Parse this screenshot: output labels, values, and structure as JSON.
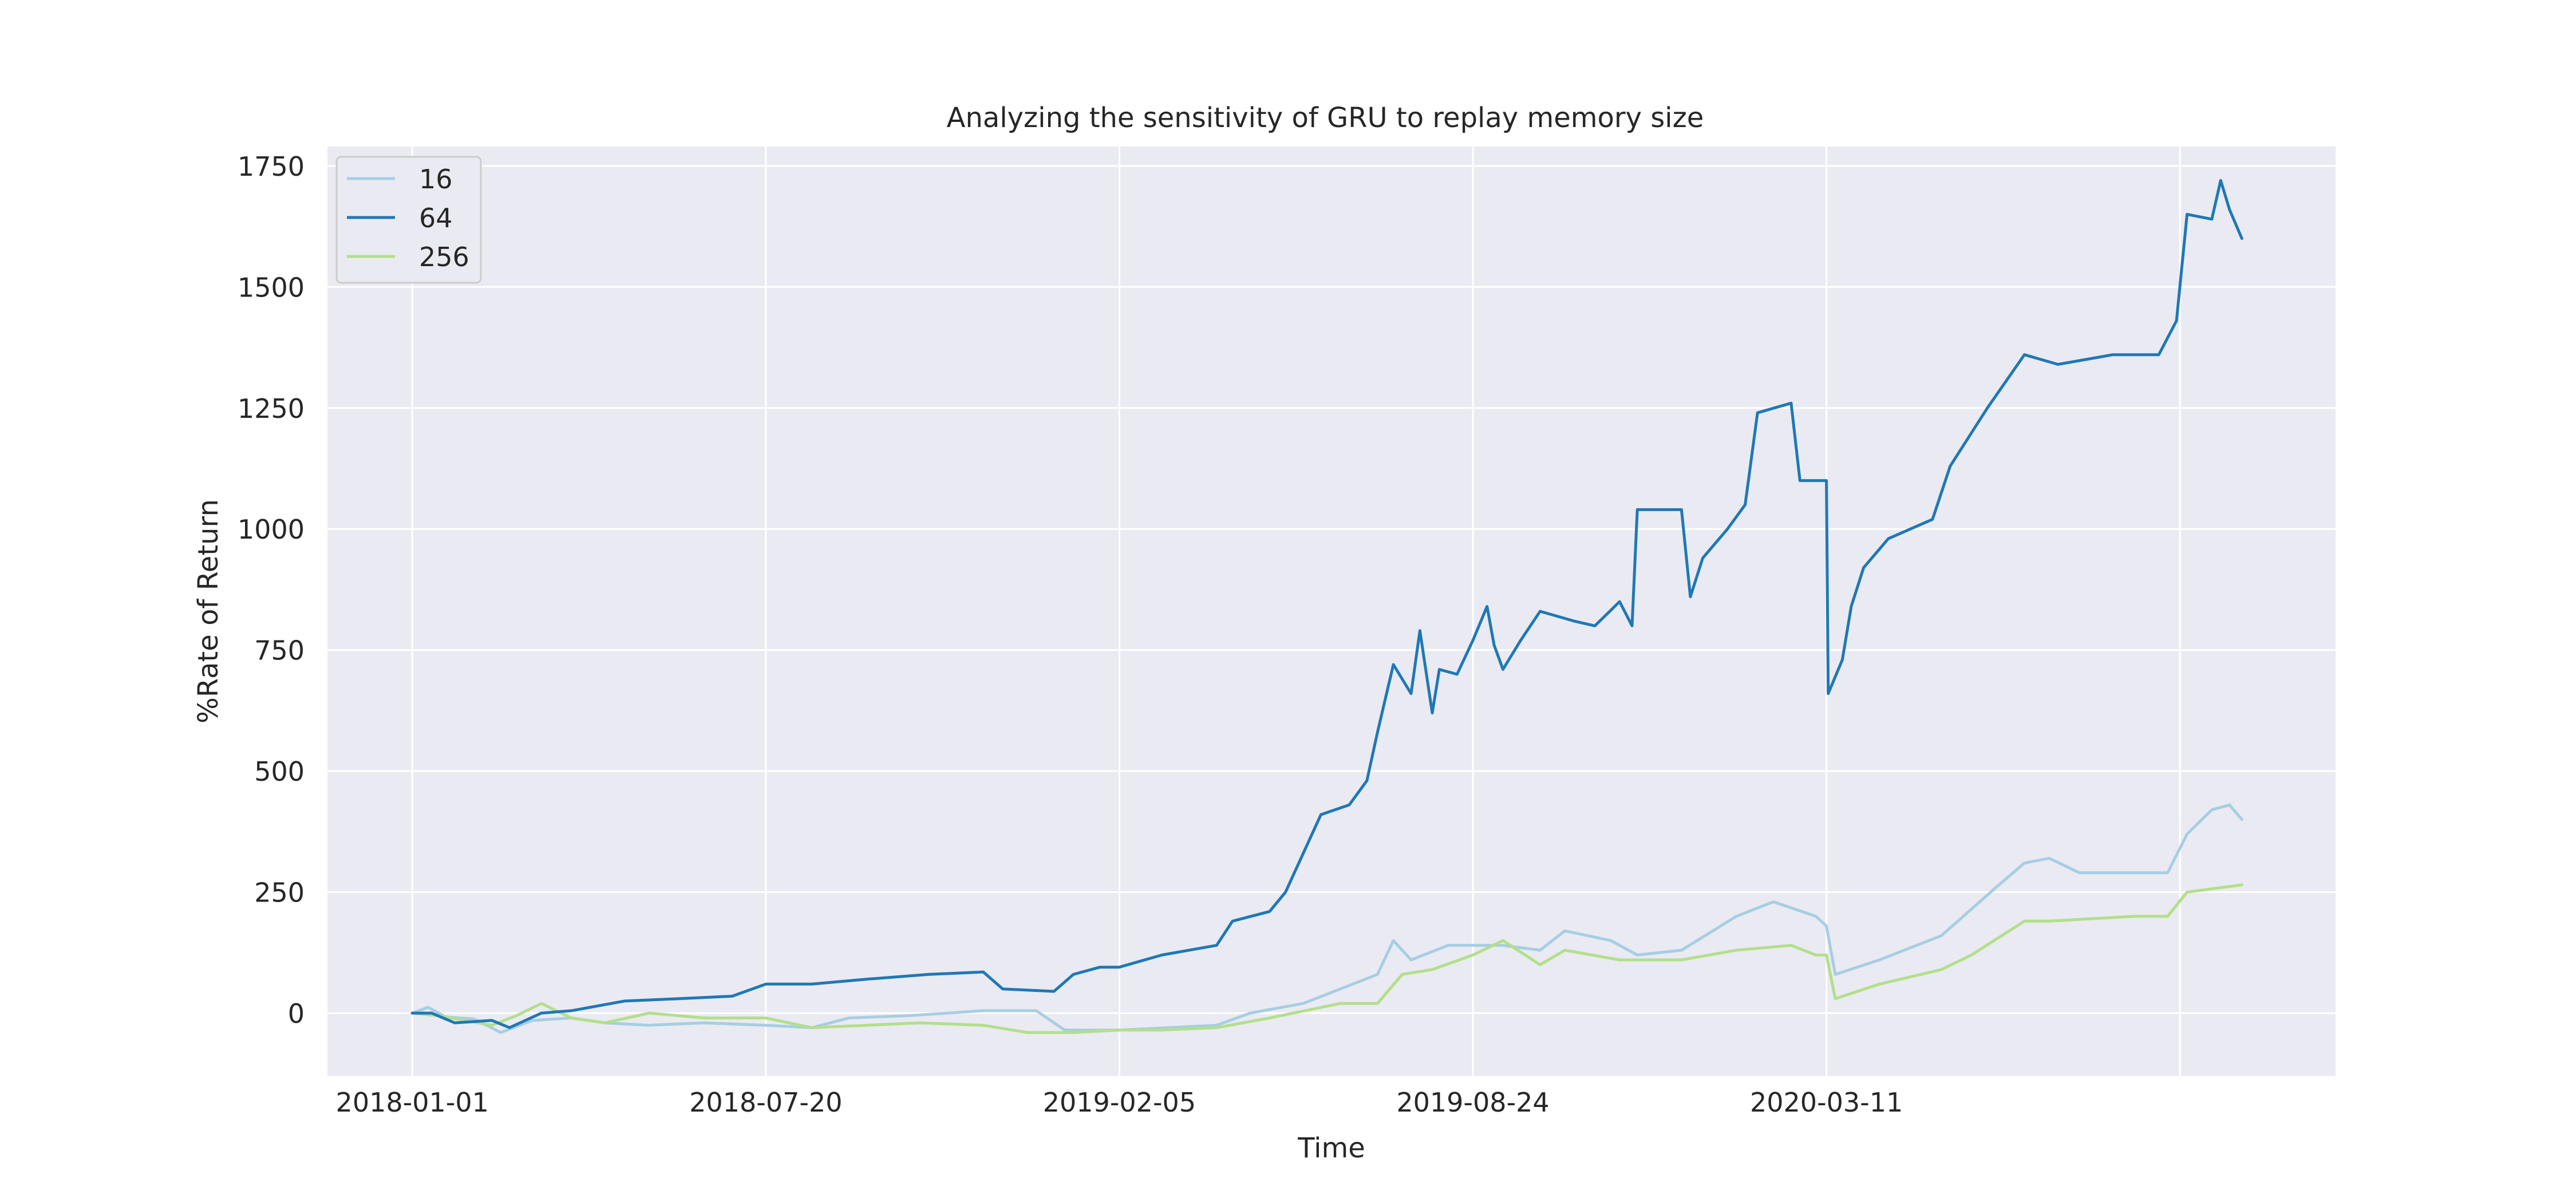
{
  "chart_data": {
    "type": "line",
    "title": "Analyzing the sensitivity of GRU to replay memory size",
    "xlabel": "Time",
    "ylabel": "%Rate of Return",
    "xlim": [
      "2017-11-14",
      "2020-12-24"
    ],
    "ylim": [
      -130,
      1790
    ],
    "x_ticks": [
      "2018-01-01",
      "2018-07-20",
      "2019-02-05",
      "2019-08-24",
      "2020-03-11"
    ],
    "y_ticks": [
      0,
      250,
      500,
      750,
      1000,
      1250,
      1500,
      1750
    ],
    "grid": true,
    "legend_placement": "top-left",
    "colors": {
      "background": "#eaeaf2",
      "grid": "#ffffff",
      "series_16": "#a6cee3",
      "series_64": "#1f78b4",
      "series_256": "#b2df8a"
    },
    "series": [
      {
        "name": "16",
        "color": "#a6cee3",
        "points": [
          [
            "2018-01-01",
            0
          ],
          [
            "2018-01-10",
            12
          ],
          [
            "2018-01-20",
            -8
          ],
          [
            "2018-02-05",
            -12
          ],
          [
            "2018-02-20",
            -40
          ],
          [
            "2018-03-10",
            -15
          ],
          [
            "2018-04-01",
            -10
          ],
          [
            "2018-04-20",
            -20
          ],
          [
            "2018-05-15",
            -25
          ],
          [
            "2018-06-15",
            -20
          ],
          [
            "2018-07-20",
            -25
          ],
          [
            "2018-08-15",
            -30
          ],
          [
            "2018-09-05",
            -10
          ],
          [
            "2018-10-10",
            -5
          ],
          [
            "2018-11-20",
            5
          ],
          [
            "2018-12-20",
            5
          ],
          [
            "2019-01-05",
            -35
          ],
          [
            "2019-02-05",
            -35
          ],
          [
            "2019-03-05",
            -30
          ],
          [
            "2019-04-01",
            -25
          ],
          [
            "2019-04-20",
            0
          ],
          [
            "2019-05-20",
            20
          ],
          [
            "2019-06-10",
            50
          ],
          [
            "2019-07-01",
            80
          ],
          [
            "2019-07-10",
            150
          ],
          [
            "2019-07-20",
            110
          ],
          [
            "2019-08-10",
            140
          ],
          [
            "2019-08-24",
            140
          ],
          [
            "2019-09-10",
            140
          ],
          [
            "2019-10-01",
            130
          ],
          [
            "2019-10-15",
            170
          ],
          [
            "2019-11-10",
            150
          ],
          [
            "2019-11-25",
            120
          ],
          [
            "2019-12-20",
            130
          ],
          [
            "2020-01-20",
            200
          ],
          [
            "2020-02-10",
            230
          ],
          [
            "2020-03-05",
            200
          ],
          [
            "2020-03-11",
            180
          ],
          [
            "2020-03-16",
            80
          ],
          [
            "2020-04-10",
            110
          ],
          [
            "2020-05-15",
            160
          ],
          [
            "2020-06-15",
            260
          ],
          [
            "2020-07-01",
            310
          ],
          [
            "2020-07-15",
            320
          ],
          [
            "2020-08-01",
            290
          ],
          [
            "2020-09-01",
            290
          ],
          [
            "2020-09-20",
            290
          ],
          [
            "2020-10-01",
            370
          ],
          [
            "2020-10-15",
            420
          ],
          [
            "2020-10-25",
            430
          ],
          [
            "2020-11-01",
            400
          ]
        ]
      },
      {
        "name": "64",
        "color": "#1f78b4",
        "points": [
          [
            "2018-01-01",
            0
          ],
          [
            "2018-01-12",
            0
          ],
          [
            "2018-01-25",
            -20
          ],
          [
            "2018-02-15",
            -15
          ],
          [
            "2018-02-25",
            -30
          ],
          [
            "2018-03-15",
            0
          ],
          [
            "2018-04-01",
            5
          ],
          [
            "2018-05-01",
            25
          ],
          [
            "2018-06-01",
            30
          ],
          [
            "2018-07-01",
            35
          ],
          [
            "2018-07-20",
            60
          ],
          [
            "2018-08-15",
            60
          ],
          [
            "2018-09-15",
            70
          ],
          [
            "2018-10-20",
            80
          ],
          [
            "2018-11-20",
            85
          ],
          [
            "2018-12-01",
            50
          ],
          [
            "2018-12-30",
            45
          ],
          [
            "2019-01-10",
            80
          ],
          [
            "2019-01-25",
            95
          ],
          [
            "2019-02-05",
            95
          ],
          [
            "2019-03-01",
            120
          ],
          [
            "2019-04-01",
            140
          ],
          [
            "2019-04-10",
            190
          ],
          [
            "2019-05-01",
            210
          ],
          [
            "2019-05-10",
            250
          ],
          [
            "2019-05-20",
            330
          ],
          [
            "2019-05-30",
            410
          ],
          [
            "2019-06-15",
            430
          ],
          [
            "2019-06-25",
            480
          ],
          [
            "2019-07-01",
            580
          ],
          [
            "2019-07-10",
            720
          ],
          [
            "2019-07-20",
            660
          ],
          [
            "2019-07-25",
            790
          ],
          [
            "2019-08-01",
            620
          ],
          [
            "2019-08-05",
            710
          ],
          [
            "2019-08-15",
            700
          ],
          [
            "2019-08-24",
            770
          ],
          [
            "2019-09-01",
            840
          ],
          [
            "2019-09-05",
            760
          ],
          [
            "2019-09-10",
            710
          ],
          [
            "2019-09-20",
            770
          ],
          [
            "2019-10-01",
            830
          ],
          [
            "2019-10-20",
            810
          ],
          [
            "2019-11-01",
            800
          ],
          [
            "2019-11-15",
            850
          ],
          [
            "2019-11-22",
            800
          ],
          [
            "2019-11-25",
            1040
          ],
          [
            "2019-12-20",
            1040
          ],
          [
            "2019-12-25",
            860
          ],
          [
            "2020-01-01",
            940
          ],
          [
            "2020-01-15",
            1000
          ],
          [
            "2020-01-25",
            1050
          ],
          [
            "2020-02-01",
            1240
          ],
          [
            "2020-02-20",
            1260
          ],
          [
            "2020-02-25",
            1100
          ],
          [
            "2020-03-11",
            1100
          ],
          [
            "2020-03-12",
            660
          ],
          [
            "2020-03-20",
            730
          ],
          [
            "2020-03-25",
            840
          ],
          [
            "2020-04-01",
            920
          ],
          [
            "2020-04-15",
            980
          ],
          [
            "2020-05-10",
            1020
          ],
          [
            "2020-05-20",
            1130
          ],
          [
            "2020-06-10",
            1250
          ],
          [
            "2020-07-01",
            1360
          ],
          [
            "2020-07-20",
            1340
          ],
          [
            "2020-08-20",
            1360
          ],
          [
            "2020-09-15",
            1360
          ],
          [
            "2020-09-25",
            1430
          ],
          [
            "2020-10-01",
            1650
          ],
          [
            "2020-10-15",
            1640
          ],
          [
            "2020-10-20",
            1720
          ],
          [
            "2020-10-25",
            1660
          ],
          [
            "2020-11-01",
            1600
          ]
        ]
      },
      {
        "name": "256",
        "color": "#b2df8a",
        "points": [
          [
            "2018-01-01",
            0
          ],
          [
            "2018-01-15",
            -5
          ],
          [
            "2018-02-15",
            -25
          ],
          [
            "2018-03-01",
            -5
          ],
          [
            "2018-03-15",
            20
          ],
          [
            "2018-04-01",
            -10
          ],
          [
            "2018-04-20",
            -20
          ],
          [
            "2018-05-15",
            0
          ],
          [
            "2018-06-15",
            -10
          ],
          [
            "2018-07-20",
            -10
          ],
          [
            "2018-08-15",
            -30
          ],
          [
            "2018-09-15",
            -25
          ],
          [
            "2018-10-15",
            -20
          ],
          [
            "2018-11-20",
            -25
          ],
          [
            "2018-12-15",
            -40
          ],
          [
            "2019-01-10",
            -40
          ],
          [
            "2019-02-05",
            -35
          ],
          [
            "2019-03-01",
            -35
          ],
          [
            "2019-04-01",
            -30
          ],
          [
            "2019-05-01",
            -10
          ],
          [
            "2019-06-10",
            20
          ],
          [
            "2019-07-01",
            20
          ],
          [
            "2019-07-15",
            80
          ],
          [
            "2019-08-01",
            90
          ],
          [
            "2019-08-24",
            120
          ],
          [
            "2019-09-10",
            150
          ],
          [
            "2019-10-01",
            100
          ],
          [
            "2019-10-15",
            130
          ],
          [
            "2019-11-15",
            110
          ],
          [
            "2019-12-20",
            110
          ],
          [
            "2020-01-20",
            130
          ],
          [
            "2020-02-20",
            140
          ],
          [
            "2020-03-05",
            120
          ],
          [
            "2020-03-11",
            120
          ],
          [
            "2020-03-16",
            30
          ],
          [
            "2020-04-10",
            60
          ],
          [
            "2020-05-15",
            90
          ],
          [
            "2020-06-01",
            120
          ],
          [
            "2020-07-01",
            190
          ],
          [
            "2020-07-15",
            190
          ],
          [
            "2020-09-01",
            200
          ],
          [
            "2020-09-20",
            200
          ],
          [
            "2020-10-01",
            250
          ],
          [
            "2020-11-01",
            265
          ]
        ]
      }
    ]
  }
}
